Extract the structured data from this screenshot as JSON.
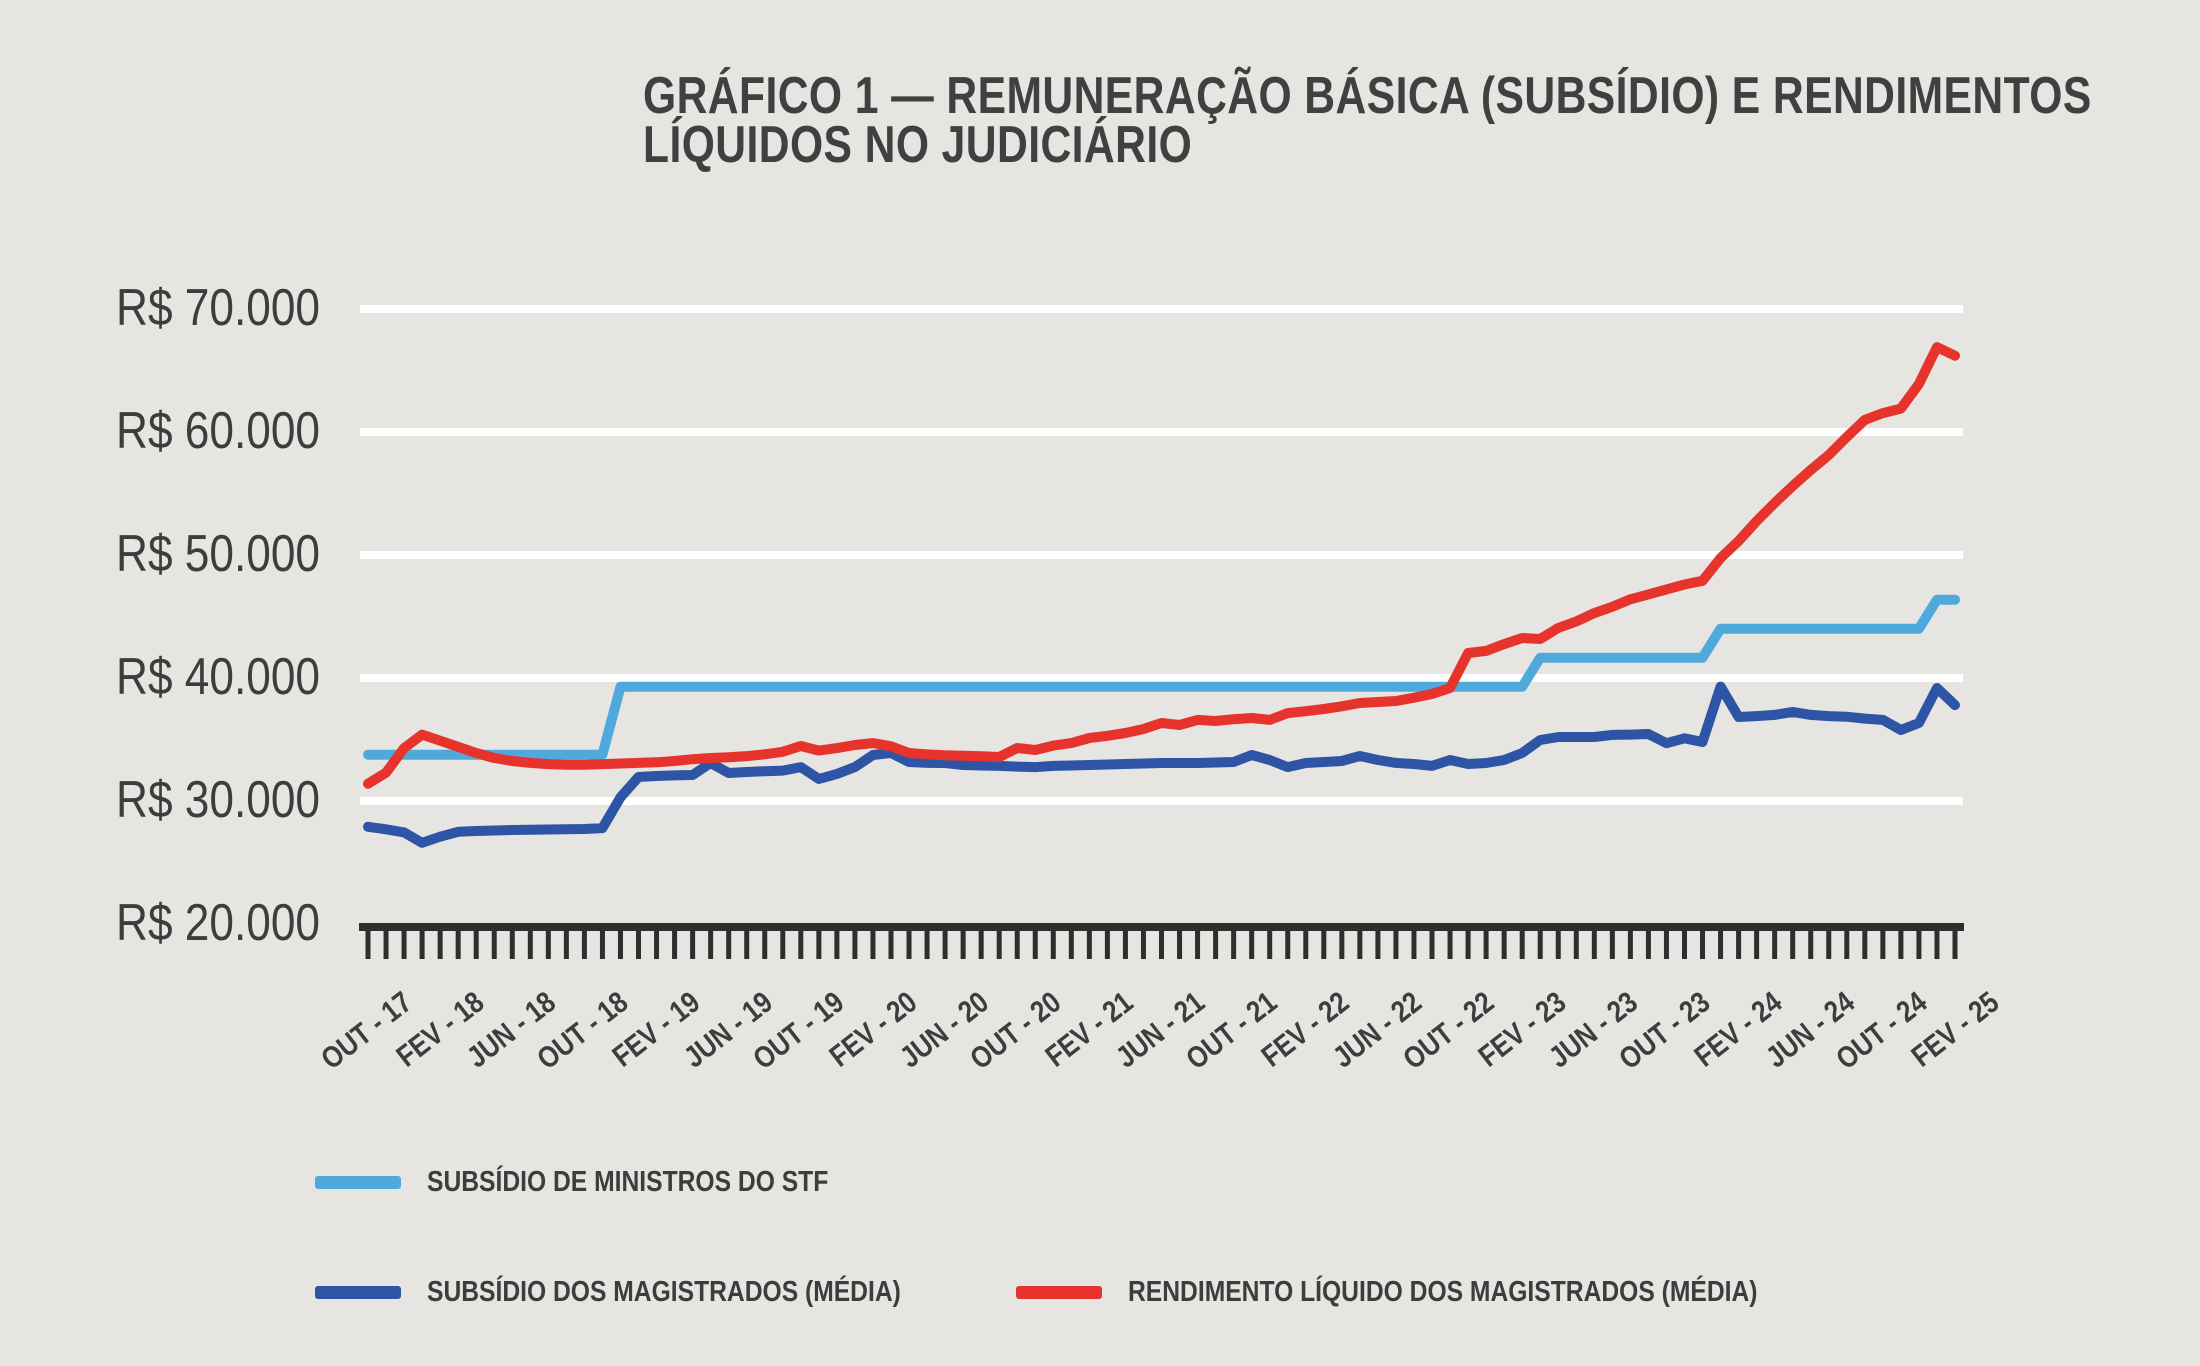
{
  "title": {
    "line1": "GRÁFICO 1 — REMUNERAÇÃO BÁSICA (SUBSÍDIO) E RENDIMENTOS",
    "line2": "LÍQUIDOS NO JUDICIÁRIO"
  },
  "colors": {
    "background": "#e6e5e1",
    "gridline": "#ffffff",
    "axis": "#2e2e2e",
    "text": "#3d3d3d",
    "stf_line": "#4fa9dc",
    "magistrados_line": "#2e55a5",
    "liquido_line": "#e6342c"
  },
  "chart_data": {
    "type": "line",
    "title": "GRÁFICO 1 — REMUNERAÇÃO BÁSICA (SUBSÍDIO) E RENDIMENTOS LÍQUIDOS NO JUDICIÁRIO",
    "grid": "horizontal white gridlines at each R$ 10.000 step from 30.000 to 70.000",
    "legend_position": "bottom-left",
    "x_unit": "month",
    "x": [
      "OUT-17",
      "NOV-17",
      "DEZ-17",
      "JAN-18",
      "FEV-18",
      "MAR-18",
      "ABR-18",
      "MAI-18",
      "JUN-18",
      "JUL-18",
      "AGO-18",
      "SET-18",
      "OUT-18",
      "NOV-18",
      "DEZ-18",
      "JAN-19",
      "FEV-19",
      "MAR-19",
      "ABR-19",
      "MAI-19",
      "JUN-19",
      "JUL-19",
      "AGO-19",
      "SET-19",
      "OUT-19",
      "NOV-19",
      "DEZ-19",
      "JAN-20",
      "FEV-20",
      "MAR-20",
      "ABR-20",
      "MAI-20",
      "JUN-20",
      "JUL-20",
      "AGO-20",
      "SET-20",
      "OUT-20",
      "NOV-20",
      "DEZ-20",
      "JAN-21",
      "FEV-21",
      "MAR-21",
      "ABR-21",
      "MAI-21",
      "JUN-21",
      "JUL-21",
      "AGO-21",
      "SET-21",
      "OUT-21",
      "NOV-21",
      "DEZ-21",
      "JAN-22",
      "FEV-22",
      "MAR-22",
      "ABR-22",
      "MAI-22",
      "JUN-22",
      "JUL-22",
      "AGO-22",
      "SET-22",
      "OUT-22",
      "NOV-22",
      "DEZ-22",
      "JAN-23",
      "FEV-23",
      "MAR-23",
      "ABR-23",
      "MAI-23",
      "JUN-23",
      "JUL-23",
      "AGO-23",
      "SET-23",
      "OUT-23",
      "NOV-23",
      "DEZ-23",
      "JAN-24",
      "FEV-24",
      "MAR-24",
      "ABR-24",
      "MAI-24",
      "JUN-24",
      "JUL-24",
      "AGO-24",
      "SET-24",
      "OUT-24",
      "NOV-24",
      "DEZ-24",
      "JAN-25",
      "FEV-25"
    ],
    "x_tick_labels": [
      "OUT - 17",
      "FEV - 18",
      "JUN - 18",
      "OUT - 18",
      "FEV - 19",
      "JUN - 19",
      "OUT - 19",
      "FEV - 20",
      "JUN - 20",
      "OUT - 20",
      "FEV - 21",
      "JUN - 21",
      "OUT - 21",
      "FEV - 22",
      "JUN - 22",
      "OUT - 22",
      "FEV - 23",
      "JUN - 23",
      "OUT - 23",
      "FEV - 24",
      "JUN - 24",
      "OUT - 24",
      "FEV - 25"
    ],
    "x_tick_label_every_n_months": 4,
    "y_axis": {
      "min": 20000,
      "max": 70000,
      "tick_step": 10000,
      "ticks": [
        {
          "value": 70000,
          "label": "R$ 70.000"
        },
        {
          "value": 60000,
          "label": "R$ 60.000"
        },
        {
          "value": 50000,
          "label": "R$ 50.000"
        },
        {
          "value": 40000,
          "label": "R$ 40.000"
        },
        {
          "value": 30000,
          "label": "R$ 30.000"
        },
        {
          "value": 20000,
          "label": "R$ 20.000"
        }
      ],
      "gridline_values": [
        70000,
        60000,
        50000,
        40000,
        30000
      ]
    },
    "series": [
      {
        "name": "SUBSÍDIO DE MINISTROS DO STF",
        "color_key": "stf_line",
        "values": [
          33763,
          33763,
          33763,
          33763,
          33763,
          33763,
          33763,
          33763,
          33763,
          33763,
          33763,
          33763,
          33763,
          33763,
          39293,
          39293,
          39293,
          39293,
          39293,
          39293,
          39293,
          39293,
          39293,
          39293,
          39293,
          39293,
          39293,
          39293,
          39293,
          39293,
          39293,
          39293,
          39293,
          39293,
          39293,
          39293,
          39293,
          39293,
          39293,
          39293,
          39293,
          39293,
          39293,
          39293,
          39293,
          39293,
          39293,
          39293,
          39293,
          39293,
          39293,
          39293,
          39293,
          39293,
          39293,
          39293,
          39293,
          39293,
          39293,
          39293,
          39293,
          39293,
          39293,
          39293,
          39293,
          41650,
          41650,
          41650,
          41650,
          41650,
          41650,
          41650,
          41650,
          41650,
          41650,
          44008,
          44008,
          44008,
          44008,
          44008,
          44008,
          44008,
          44008,
          44008,
          44008,
          44008,
          44008,
          46366,
          46366
        ]
      },
      {
        "name": "SUBSÍDIO DOS MAGISTRADOS (MÉDIA)",
        "color_key": "magistrados_line",
        "values": [
          27900,
          27700,
          27450,
          26600,
          27100,
          27500,
          27560,
          27600,
          27640,
          27660,
          27680,
          27700,
          27720,
          27800,
          30300,
          31950,
          32030,
          32080,
          32110,
          33090,
          32280,
          32360,
          32420,
          32470,
          32760,
          31790,
          32200,
          32760,
          33740,
          33900,
          33170,
          33100,
          33090,
          32930,
          32890,
          32850,
          32800,
          32760,
          32850,
          32890,
          32930,
          32970,
          33010,
          33050,
          33090,
          33090,
          33090,
          33130,
          33170,
          33740,
          33330,
          32760,
          33090,
          33170,
          33250,
          33660,
          33330,
          33100,
          33010,
          32850,
          33330,
          33010,
          33090,
          33330,
          33900,
          34960,
          35200,
          35200,
          35200,
          35370,
          35400,
          35450,
          34700,
          35100,
          34800,
          39300,
          36830,
          36900,
          37000,
          37240,
          37000,
          36900,
          36850,
          36700,
          36590,
          35770,
          36340,
          39190,
          37800
        ]
      },
      {
        "name": "RENDIMENTO LÍQUIDO DOS MAGISTRADOS (MÉDIA)",
        "color_key": "liquido_line",
        "values": [
          31400,
          32300,
          34300,
          35400,
          34900,
          34400,
          33900,
          33500,
          33250,
          33100,
          33000,
          32950,
          32950,
          33000,
          33050,
          33100,
          33150,
          33250,
          33400,
          33500,
          33550,
          33650,
          33800,
          34000,
          34470,
          34100,
          34300,
          34550,
          34710,
          34450,
          33900,
          33800,
          33720,
          33680,
          33640,
          33580,
          34310,
          34150,
          34500,
          34710,
          35120,
          35300,
          35530,
          35850,
          36340,
          36180,
          36590,
          36500,
          36650,
          36750,
          36590,
          37150,
          37300,
          37480,
          37700,
          37970,
          38050,
          38130,
          38400,
          38700,
          39190,
          42030,
          42200,
          42760,
          43250,
          43170,
          44070,
          44600,
          45280,
          45800,
          46400,
          46800,
          47200,
          47600,
          47900,
          49760,
          51140,
          52760,
          54230,
          55610,
          56910,
          58130,
          59590,
          60980,
          61540,
          61900,
          63900,
          66900,
          66200
        ]
      }
    ]
  },
  "legend": {
    "items": [
      {
        "label": "SUBSÍDIO DE MINISTROS DO STF"
      },
      {
        "label": "SUBSÍDIO DOS MAGISTRADOS (MÉDIA)"
      },
      {
        "label": "RENDIMENTO LÍQUIDO DOS MAGISTRADOS (MÉDIA)"
      }
    ]
  }
}
